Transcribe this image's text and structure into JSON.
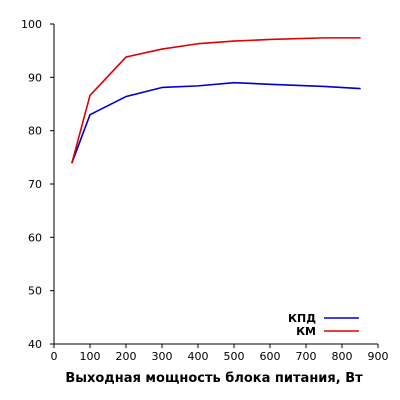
{
  "chart_data": {
    "type": "line",
    "title": "",
    "xlabel": "Выходная мощность блока питания, Вт",
    "ylabel": "",
    "xlim": [
      0,
      900
    ],
    "ylim": [
      40,
      100
    ],
    "xticks": [
      0,
      100,
      200,
      300,
      400,
      500,
      600,
      700,
      800,
      900
    ],
    "yticks": [
      40,
      50,
      60,
      70,
      80,
      90,
      100
    ],
    "grid": false,
    "legend": "bottom-right",
    "series": [
      {
        "name": "КПД",
        "color": "#0000cc",
        "x": [
          50,
          100,
          200,
          300,
          400,
          500,
          600,
          750,
          850
        ],
        "y": [
          74,
          83,
          86.4,
          88.1,
          88.4,
          89.0,
          88.7,
          88.3,
          87.9
        ]
      },
      {
        "name": "КМ",
        "color": "#dd0000",
        "x": [
          50,
          100,
          200,
          300,
          400,
          500,
          600,
          750,
          850
        ],
        "y": [
          74,
          86.6,
          93.8,
          95.3,
          96.3,
          96.8,
          97.1,
          97.4,
          97.4
        ]
      }
    ]
  }
}
